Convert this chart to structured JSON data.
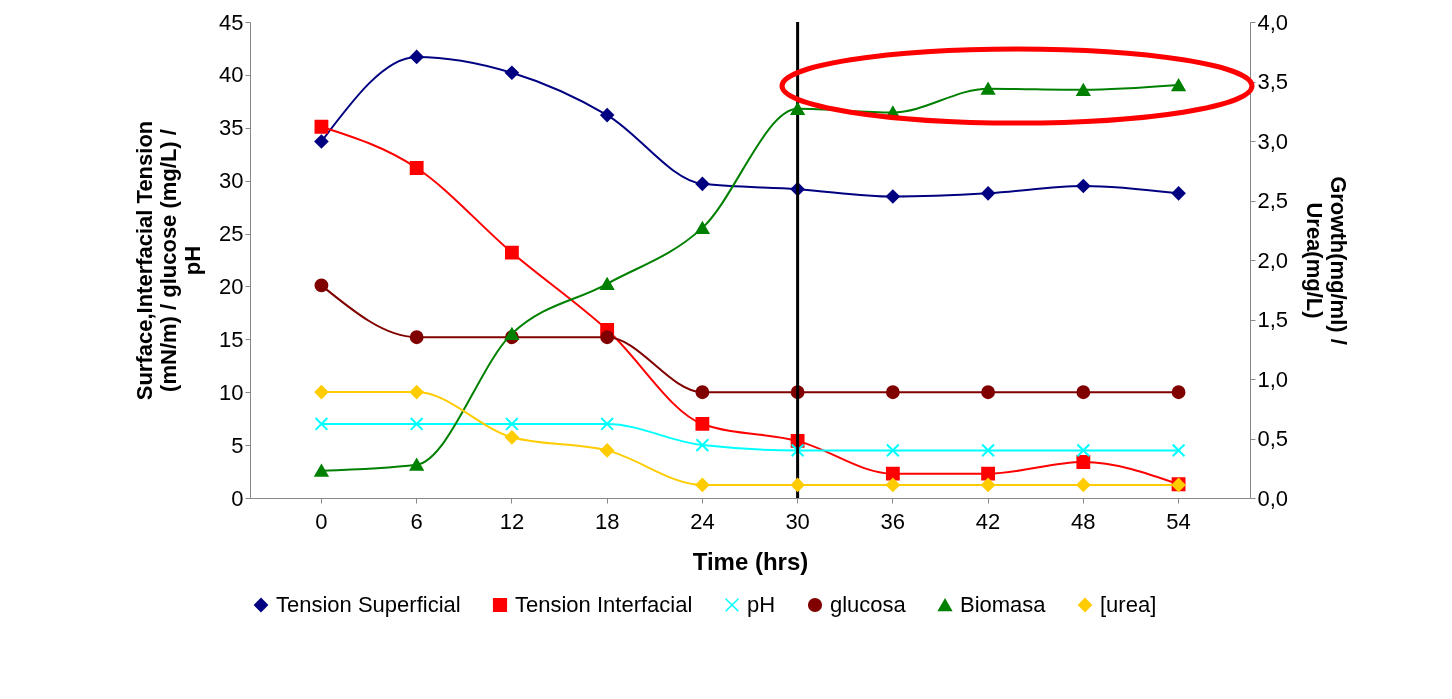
{
  "chart_data": {
    "type": "line",
    "xlabel": "Time (hrs)",
    "ylabel": "Surface,Interfacial Tension (mN/m) / glucose (mg/L) / pH",
    "y2label": "Growth(mg/ml) / Urea(mg/L)",
    "categories": [
      "0",
      "6",
      "12",
      "18",
      "24",
      "30",
      "36",
      "42",
      "48",
      "54"
    ],
    "series": [
      {
        "name": "Tension Superficial",
        "color": "#000080",
        "marker": "diamond",
        "values": [
          33.7,
          41.7,
          40.2,
          36.2,
          29.7,
          29.2,
          28.5,
          28.8,
          29.5,
          28.8
        ]
      },
      {
        "name": "Tension Interfacial",
        "color": "#ff0000",
        "marker": "square",
        "values": [
          35.1,
          31.2,
          23.2,
          15.9,
          7.0,
          5.4,
          2.3,
          2.3,
          3.4,
          1.3
        ]
      },
      {
        "name": "pH",
        "color": "#00ffff",
        "marker": "cross",
        "values": [
          7,
          7,
          7,
          7,
          5,
          4.5,
          4.5,
          4.5,
          4.5,
          4.5
        ]
      },
      {
        "name": "glucosa",
        "color": "#800000",
        "marker": "circle",
        "values": [
          20.1,
          15.2,
          15.2,
          15.2,
          10,
          10,
          10,
          10,
          10,
          10
        ]
      },
      {
        "name": "Biomasa",
        "color": "#008000",
        "marker": "triangle",
        "axis": "y2",
        "values": [
          0.23,
          0.28,
          1.38,
          1.8,
          2.27,
          3.27,
          3.24,
          3.44,
          3.43,
          3.47
        ]
      },
      {
        "name": "[urea]",
        "color": "#ffcc00",
        "marker": "diamond",
        "axis": "y2",
        "values": [
          0.89,
          0.89,
          0.51,
          0.4,
          0.11,
          0.11,
          0.11,
          0.11,
          0.11,
          0.11
        ]
      }
    ],
    "ylim": [
      0,
      45
    ],
    "yticks": [
      0,
      5,
      10,
      15,
      20,
      25,
      30,
      35,
      40,
      45
    ],
    "y2lim": [
      0,
      4
    ],
    "y2ticks": [
      {
        "value": 0,
        "label": "0,0"
      },
      {
        "value": 0.5,
        "label": "0,5"
      },
      {
        "value": 1,
        "label": "1,0"
      },
      {
        "value": 1.5,
        "label": "1,5"
      },
      {
        "value": 2,
        "label": "2,0"
      },
      {
        "value": 2.5,
        "label": "2,5"
      },
      {
        "value": 3,
        "label": "3,0"
      },
      {
        "value": 3.5,
        "label": "3,5"
      },
      {
        "value": 4,
        "label": "4,0"
      }
    ],
    "ref_lines": [
      {
        "axis": "x",
        "value": "30",
        "color": "#000000"
      }
    ],
    "grid": false,
    "legend": "bottom"
  }
}
